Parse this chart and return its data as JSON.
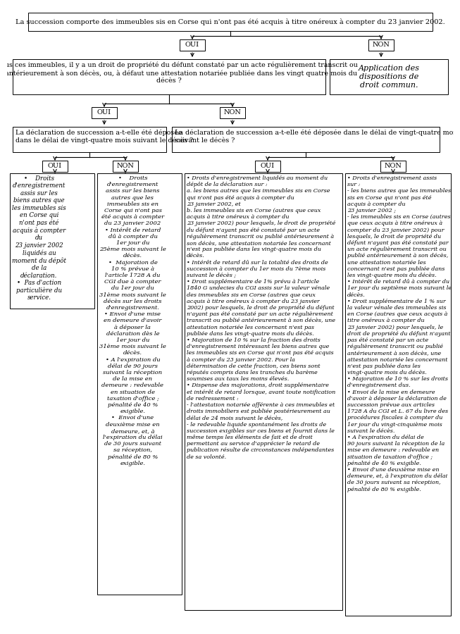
{
  "box1_text": "La succession comporte des immeubles sis en Corse qui n'ont pas été acquis à titre onéreux à compter du 23 janvier 2002.",
  "box2_text": "Pour tous ces immeubles, il y a un droit de propriété du défunt constaté par un acte régulièrement transcrit ou\npublié antérieurement à son décès, ou, à défaut une attestation notariée publiée dans les vingt quatre mois du\ndécès ?",
  "box_non_text": "Application des\ndispositions de\ndroit commun.",
  "box3_text": "La déclaration de succession a-t-elle été déposée\ndans le délai de vingt-quatre mois suivant le décès ?",
  "box4_text": "La déclaration de succession a-t-elle été déposée dans le délai de vingt-quatre mois\nsuivant le décès ?",
  "box_A_text": "•    Droits\nd'enregistrement\nassis sur les\nbiens autres que\nles immeubles sis\nen Corse qui\nn'ont pas été\nacquis à compter\ndu\n23 janvier 2002\nliquidés au\nmoment du dépôt\nde la\ndéclaration.\n•  Pas d'action\nparticulière du\nservice.",
  "box_B_text": "•    Droits\nd'enregistrement\nassis sur les biens\nautres que les\nimmeubles sis en\nCorse qui n'ont pas\nété acquis à compter\ndu 23 janvier 2002\n• Intérêt de retard\ndû à compter du\n1er jour du\n25ème mois suivant le\ndécès.\n•  Majoration de\n10 % prévue à\nl'article 1728 A du\nCGI due à compter\ndu 1er jour du\n31ème mois suivant le\ndécès sur les droits\nd'enregistrement.\n• Envoi d'une mise\nen demeure d'avoir\nà déposer la\ndéclaration dès le\n1er jour du\n31ème mois suivant le\ndécès.\n• A l'expiration du\ndélai de 90 jours\nsuivant la réception\nde la mise en\ndemeure : redevable\nen situation de\ntaxation d'office ;\npénalité de 40 %\nexigible.\n•  Envoi d'une\ndeuxième mise en\ndemeure, et, à\nl'expiration du délai\nde 30 jours suivant\nsa réception,\npénalité de 80 %\nexigible.",
  "box_C_text": "• Droits d'enregistrement liquidés au moment du\ndépôt de la déclaration sur :\na. les biens autres que les immeubles sis en Corse\nqui n'ont pas été acquis à compter du\n23 janvier 2002, et\nb. les immeubles sis en Corse (autres que ceux\nacquis à titre onéreux à compter du\n23 janvier 2002) pour lesquels, le droit de propriété\ndu défunt n'ayant pas été constaté par un acte\nrégulièrement transcrit ou publié antérieurement à\nson décès, une attestation notariée les concernant\nn'est pas publiée dans les vingt-quatre mois du\ndécès.\n• Intérêt de retard dû sur la totalité des droits de\nsuccession à compter du 1er mois du 7ème mois\nsuivant le décès ;\n• Droit supplémentaire de 1% prévu à l'article\n1840 G undecies du CGI assis sur la valeur vénale\ndes immeubles sis en Corse (autres que ceux\nacquis à titre onéreux à compter du 23 janvier\n2002) pour lesquels, le droit de propriété du défunt\nn'ayant pas été constaté par un acte régulièrement\ntranscrit ou publié antérieurement à son décès, une\nattestation notariée les concernant n'est pas\npubliée dans les vingt-quatre mois du décès.\n• Majoration de 10 % sur la fraction des droits\nd'enregistrement intéressant les biens autres que\nles immeubles sis en Corse qui n'ont pas été acquis\nà compter du 23 janvier 2002. Pour la\ndétermination de cette fraction, ces biens sont\nréputés compris dans les tranches du barème\nsoumises aux taux les moins élevés.\n• Dispense des majorations, droit supplémentaire\net intérêt de retard lorsque, avant toute notification\nde redressement :\n- l'attestation notariée afférente à ces immeubles et\ndroits immobiliers est publiée postérieurement au\ndélai de 24 mois suivant le décès,\n- le redevable liquide spontanément les droits de\nsuccession exigibles sur ces biens et fournit dans le\nmême temps les éléments de fait et de droit\npermettant au service d'apprécier le retard de\npublication résulte de circonstances indépendantes\nde sa volonté.",
  "box_D_text": "• Droits d'enregistrement assis\nsur :\n- les biens autres que les immeubles\nsis en Corse qui n'ont pas été\nacquis à compter du\n23 janvier 2002 ;\n- les immeubles sis en Corse (autres\nque ceux acquis à titre onéreux à\ncompter du 23 janvier 2002) pour\nlesquels, le droit de propriété du\ndéfunt n'ayant pas été constaté par\nun acte régulièrement transcrit ou\npublié antérieurement à son décès,\nune attestation notariée les\nconcernant n'est pas publiée dans\nles vingt-quatre mois du décès.\n• Intérêt de retard dû à compter du\n1er jour du septième mois suivant le\ndécès.\n• Droit supplémentaire de 1 % sur\nla valeur vénale des immeubles sis\nen Corse (autres que ceux acquis à\ntitre onéreux à compter du\n23 janvier 2002) pour lesquels, le\ndroit de propriété du défunt n'ayant\npas été constaté par un acte\nrégulièrement transcrit ou publié\nantérieurement à son décès, une\nattestation notariée les concernant\nn'est pas publiée dans les\nvingt-quatre mois du décès.\n• Majoration de 10 % sur les droits\nd'enregistrement dus.\n• Envoi de la mise en demeure\nd'avoir à déposer la déclaration de\nsuccession prévue aux articles\n1728 A du CGI et L. 67 du livre des\nprocédures fiscales à compter du\n1er jour du vingt-cinquième mois\nsuivant le décès.\n• A l'expiration du délai de\n90 jours suivant la réception de la\nmise en demeure : redevable en\nsituation de taxation d'office ;\npénalité de 40 % exigible.\n• Envoi d'une deuxième mise en\ndemeure, et, à l'expiration du délai\nde 30 jours suivant sa réception,\npénalité de 80 % exigible.",
  "bg_color": "#ffffff"
}
